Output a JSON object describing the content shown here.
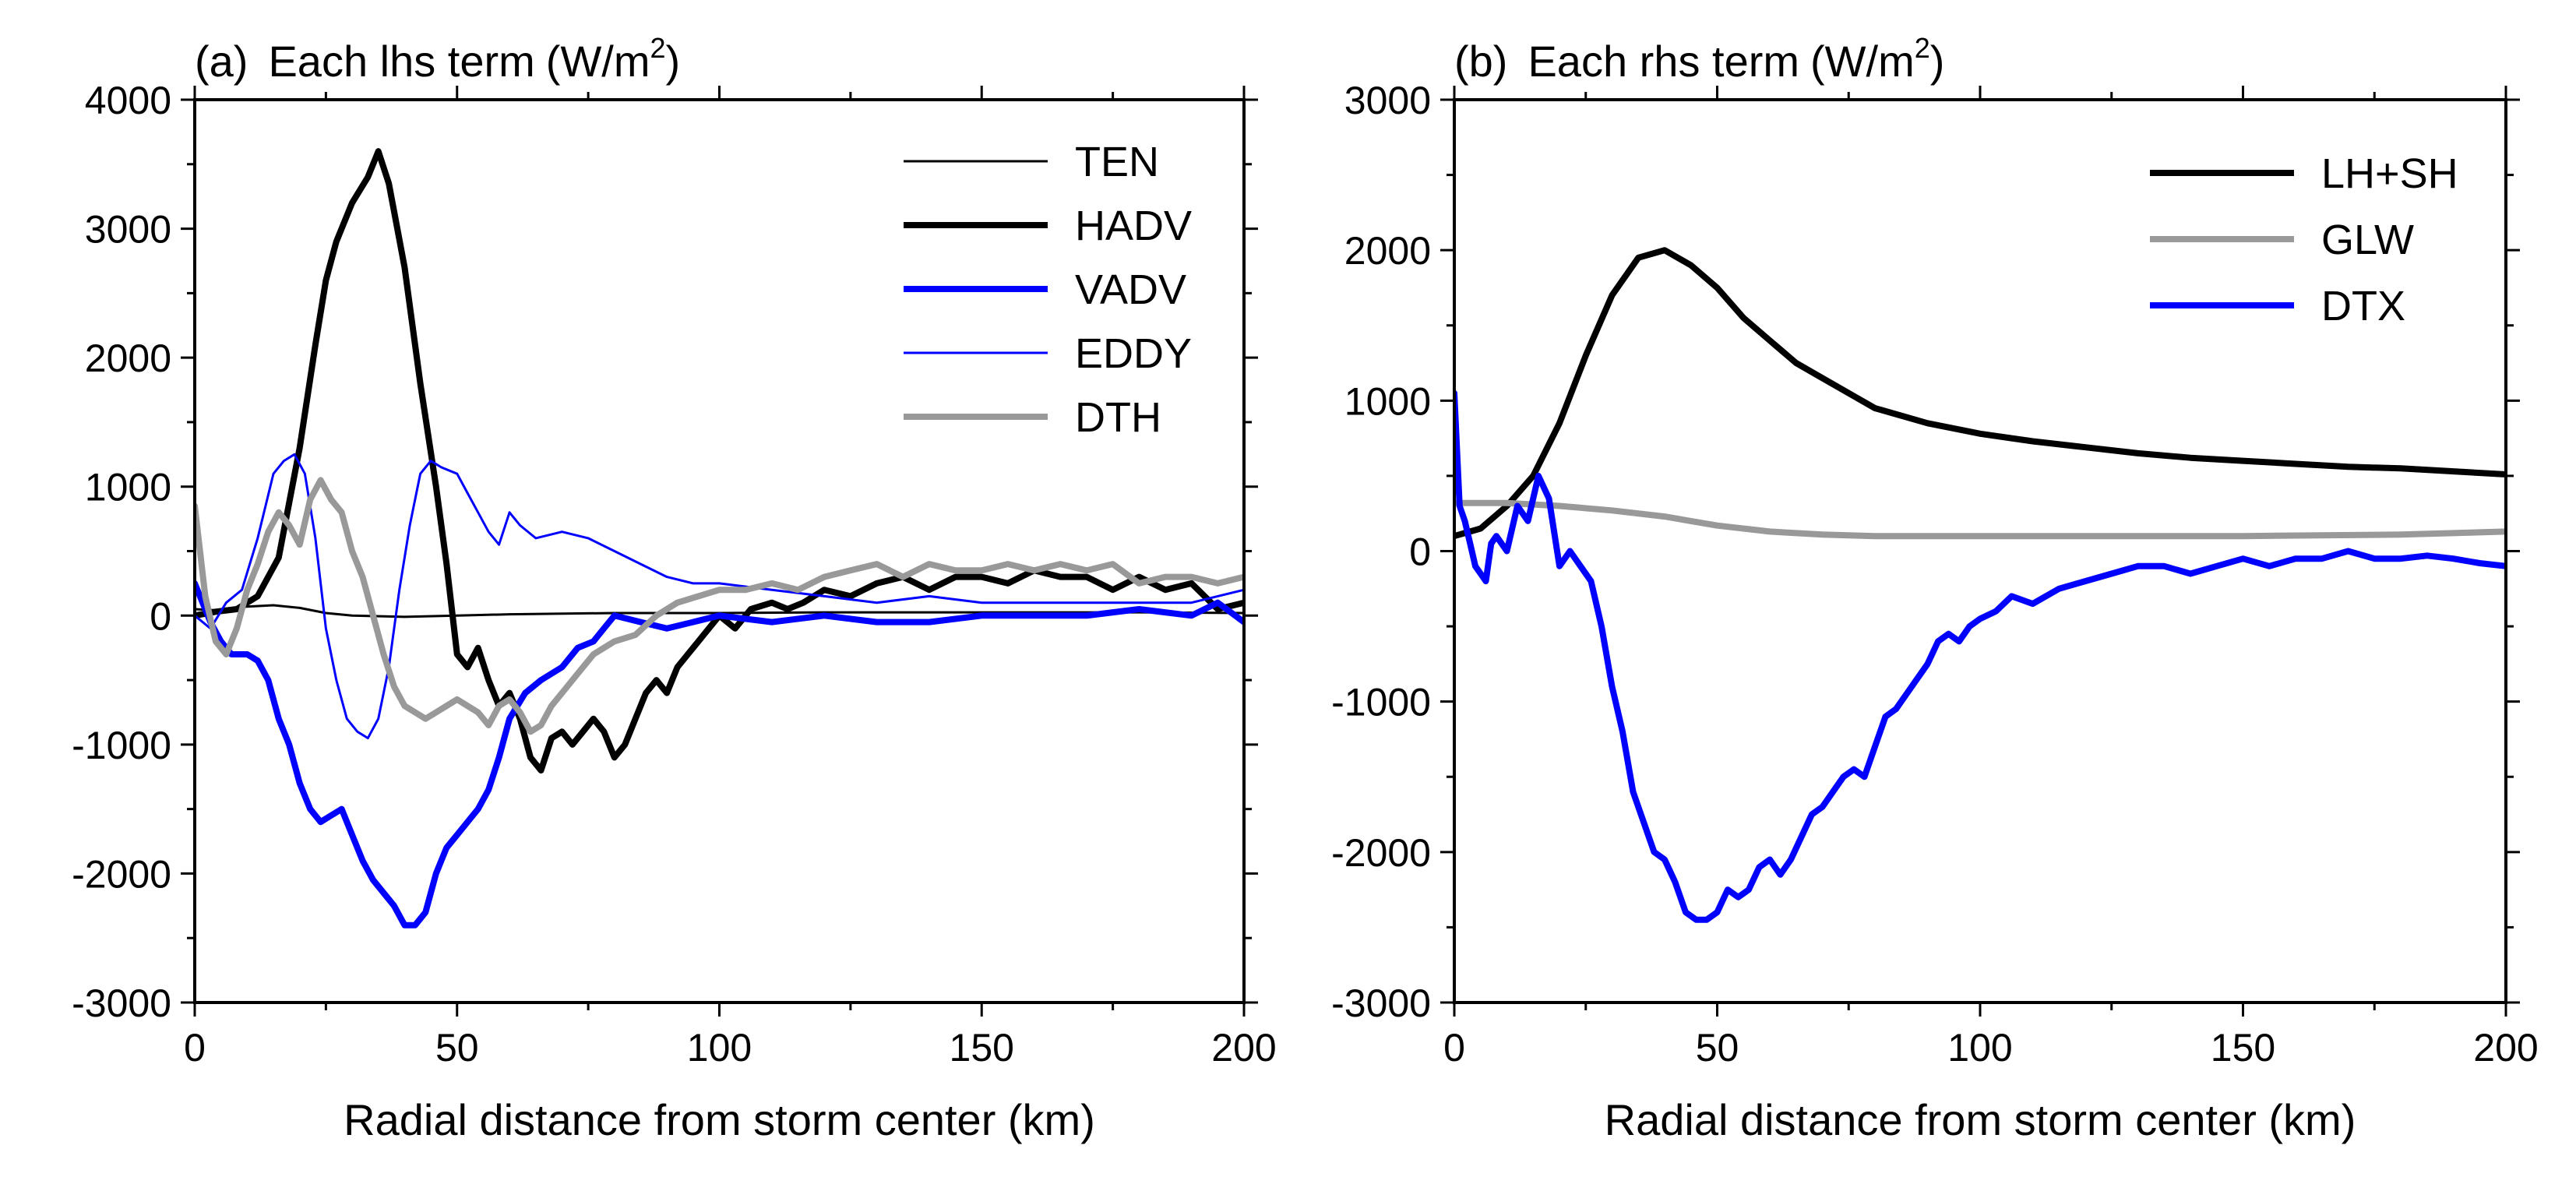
{
  "chart_data": [
    {
      "type": "line",
      "panel_label": "(a)",
      "title": "Each lhs term",
      "units_base": "(W/m",
      "units_exp": "2",
      "units_close": ")",
      "xlabel": "Radial distance from storm center (km)",
      "ylabel": "",
      "xlim": [
        0,
        200
      ],
      "ylim": [
        -3000,
        4000
      ],
      "xticks": [
        0,
        50,
        100,
        150,
        200
      ],
      "yticks": [
        -3000,
        -2000,
        -1000,
        0,
        1000,
        2000,
        3000,
        4000
      ],
      "grid": false,
      "legend_position": "top-right",
      "series": [
        {
          "name": "TEN",
          "color": "#000000",
          "width": "thin",
          "x": [
            0,
            5,
            10,
            15,
            20,
            25,
            30,
            40,
            50,
            60,
            80,
            100,
            120,
            140,
            160,
            180,
            200
          ],
          "y": [
            50,
            40,
            70,
            80,
            60,
            20,
            0,
            -10,
            0,
            10,
            20,
            20,
            25,
            25,
            25,
            25,
            20
          ]
        },
        {
          "name": "HADV",
          "color": "#000000",
          "width": "thick",
          "x": [
            0,
            4,
            8,
            12,
            16,
            20,
            23,
            25,
            27,
            30,
            33,
            35,
            37,
            40,
            43,
            46,
            48,
            50,
            52,
            54,
            56,
            58,
            60,
            62,
            64,
            66,
            68,
            70,
            72,
            74,
            76,
            78,
            80,
            82,
            84,
            86,
            88,
            90,
            92,
            95,
            98,
            100,
            103,
            106,
            110,
            113,
            116,
            120,
            125,
            130,
            135,
            140,
            145,
            150,
            155,
            160,
            165,
            170,
            175,
            180,
            185,
            190,
            195,
            200
          ],
          "y": [
            0,
            30,
            50,
            150,
            450,
            1300,
            2100,
            2600,
            2900,
            3200,
            3400,
            3600,
            3350,
            2700,
            1800,
            1000,
            400,
            -300,
            -400,
            -250,
            -500,
            -700,
            -600,
            -800,
            -1100,
            -1200,
            -950,
            -900,
            -1000,
            -900,
            -800,
            -900,
            -1100,
            -1000,
            -800,
            -600,
            -500,
            -600,
            -400,
            -250,
            -100,
            0,
            -100,
            50,
            100,
            50,
            100,
            200,
            150,
            250,
            300,
            200,
            300,
            300,
            250,
            350,
            300,
            300,
            200,
            300,
            200,
            250,
            50,
            100
          ]
        },
        {
          "name": "VADV",
          "color": "#0000ff",
          "width": "thick",
          "x": [
            0,
            3,
            5,
            7,
            10,
            12,
            14,
            16,
            18,
            20,
            22,
            24,
            26,
            28,
            30,
            32,
            34,
            36,
            38,
            40,
            42,
            44,
            46,
            48,
            50,
            52,
            54,
            56,
            58,
            60,
            63,
            66,
            70,
            73,
            76,
            78,
            80,
            85,
            90,
            95,
            100,
            110,
            120,
            130,
            140,
            150,
            160,
            170,
            180,
            190,
            195,
            200
          ],
          "y": [
            250,
            -50,
            -200,
            -300,
            -300,
            -350,
            -500,
            -800,
            -1000,
            -1300,
            -1500,
            -1600,
            -1550,
            -1500,
            -1700,
            -1900,
            -2050,
            -2150,
            -2250,
            -2400,
            -2400,
            -2300,
            -2000,
            -1800,
            -1700,
            -1600,
            -1500,
            -1350,
            -1100,
            -800,
            -600,
            -500,
            -400,
            -250,
            -200,
            -100,
            0,
            -50,
            -100,
            -50,
            0,
            -50,
            0,
            -50,
            -50,
            0,
            0,
            0,
            50,
            0,
            100,
            -50
          ]
        },
        {
          "name": "EDDY",
          "color": "#0000ff",
          "width": "thin",
          "x": [
            0,
            3,
            6,
            9,
            12,
            15,
            17,
            19,
            21,
            23,
            25,
            27,
            29,
            31,
            33,
            35,
            37,
            39,
            41,
            43,
            45,
            47,
            50,
            52,
            54,
            56,
            58,
            60,
            62,
            65,
            70,
            75,
            80,
            85,
            90,
            95,
            100,
            110,
            120,
            130,
            140,
            150,
            160,
            170,
            180,
            190,
            200
          ],
          "y": [
            0,
            -100,
            100,
            200,
            600,
            1100,
            1200,
            1250,
            1100,
            600,
            -100,
            -500,
            -800,
            -900,
            -950,
            -800,
            -400,
            200,
            700,
            1100,
            1200,
            1150,
            1100,
            950,
            800,
            650,
            550,
            800,
            700,
            600,
            650,
            600,
            500,
            400,
            300,
            250,
            250,
            200,
            150,
            100,
            150,
            100,
            100,
            100,
            100,
            100,
            200
          ]
        },
        {
          "name": "DTH",
          "color": "#999999",
          "width": "thick",
          "x": [
            0,
            2,
            4,
            6,
            8,
            10,
            12,
            14,
            16,
            18,
            20,
            22,
            24,
            26,
            28,
            30,
            32,
            34,
            36,
            38,
            40,
            42,
            44,
            46,
            48,
            50,
            52,
            54,
            56,
            58,
            60,
            62,
            64,
            66,
            68,
            70,
            72,
            74,
            76,
            78,
            80,
            84,
            88,
            92,
            96,
            100,
            105,
            110,
            115,
            120,
            125,
            130,
            135,
            140,
            145,
            150,
            155,
            160,
            165,
            170,
            175,
            180,
            185,
            190,
            195,
            200
          ],
          "y": [
            850,
            150,
            -200,
            -300,
            -100,
            200,
            400,
            650,
            800,
            700,
            550,
            900,
            1050,
            900,
            800,
            500,
            300,
            0,
            -300,
            -550,
            -700,
            -750,
            -800,
            -750,
            -700,
            -650,
            -700,
            -750,
            -850,
            -700,
            -650,
            -750,
            -900,
            -850,
            -700,
            -600,
            -500,
            -400,
            -300,
            -250,
            -200,
            -150,
            0,
            100,
            150,
            200,
            200,
            250,
            200,
            300,
            350,
            400,
            300,
            400,
            350,
            350,
            400,
            350,
            400,
            350,
            400,
            250,
            300,
            300,
            250,
            300
          ]
        }
      ]
    },
    {
      "type": "line",
      "panel_label": "(b)",
      "title": "Each rhs term",
      "units_base": "(W/m",
      "units_exp": "2",
      "units_close": ")",
      "xlabel": "Radial distance from storm center (km)",
      "ylabel": "",
      "xlim": [
        0,
        200
      ],
      "ylim": [
        -3000,
        3000
      ],
      "xticks": [
        0,
        50,
        100,
        150,
        200
      ],
      "yticks": [
        -3000,
        -2000,
        -1000,
        0,
        1000,
        2000,
        3000
      ],
      "grid": false,
      "legend_position": "top-right",
      "series": [
        {
          "name": "LH+SH",
          "color": "#000000",
          "width": "thick",
          "x": [
            0,
            5,
            10,
            15,
            20,
            25,
            30,
            35,
            40,
            45,
            50,
            55,
            60,
            65,
            70,
            80,
            90,
            100,
            110,
            120,
            130,
            140,
            150,
            160,
            170,
            180,
            190,
            200
          ],
          "y": [
            100,
            150,
            300,
            500,
            850,
            1300,
            1700,
            1950,
            2000,
            1900,
            1750,
            1550,
            1400,
            1250,
            1150,
            950,
            850,
            780,
            730,
            690,
            650,
            620,
            600,
            580,
            560,
            550,
            530,
            510
          ]
        },
        {
          "name": "GLW",
          "color": "#999999",
          "width": "thick",
          "x": [
            0,
            10,
            20,
            30,
            40,
            50,
            60,
            70,
            80,
            100,
            120,
            150,
            180,
            200
          ],
          "y": [
            320,
            320,
            300,
            270,
            230,
            170,
            130,
            110,
            100,
            100,
            100,
            100,
            110,
            130
          ]
        },
        {
          "name": "DTX",
          "color": "#0000ff",
          "width": "thick",
          "x": [
            0,
            1,
            2,
            3,
            4,
            5,
            6,
            7,
            8,
            10,
            12,
            14,
            16,
            18,
            20,
            22,
            24,
            26,
            28,
            30,
            32,
            34,
            36,
            38,
            40,
            42,
            44,
            46,
            48,
            50,
            52,
            54,
            56,
            58,
            60,
            62,
            64,
            66,
            68,
            70,
            72,
            74,
            76,
            78,
            80,
            82,
            84,
            86,
            88,
            90,
            92,
            94,
            96,
            98,
            100,
            103,
            106,
            110,
            115,
            120,
            125,
            130,
            135,
            140,
            145,
            150,
            155,
            160,
            165,
            170,
            175,
            180,
            185,
            190,
            195,
            200
          ],
          "y": [
            1050,
            300,
            200,
            50,
            -100,
            -150,
            -200,
            50,
            100,
            0,
            300,
            200,
            500,
            350,
            -100,
            0,
            -100,
            -200,
            -500,
            -900,
            -1200,
            -1600,
            -1800,
            -2000,
            -2050,
            -2200,
            -2400,
            -2450,
            -2450,
            -2400,
            -2250,
            -2300,
            -2250,
            -2100,
            -2050,
            -2150,
            -2050,
            -1900,
            -1750,
            -1700,
            -1600,
            -1500,
            -1450,
            -1500,
            -1300,
            -1100,
            -1050,
            -950,
            -850,
            -750,
            -600,
            -550,
            -600,
            -500,
            -450,
            -400,
            -300,
            -350,
            -250,
            -200,
            -150,
            -100,
            -100,
            -150,
            -100,
            -50,
            -100,
            -50,
            -50,
            0,
            -50,
            -50,
            -30,
            -50,
            -80,
            -100
          ]
        }
      ]
    }
  ]
}
